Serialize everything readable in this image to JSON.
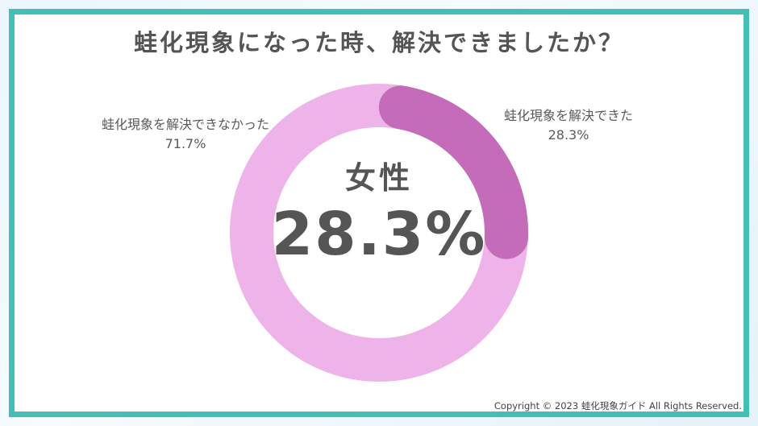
{
  "title": "蛙化現象になった時、解決できましたか？",
  "colors": {
    "frame": "#43bfb8",
    "resolved": "#c46bba",
    "not_resolved": "#eeb3e8",
    "text": "#555555"
  },
  "center": {
    "category": "女性",
    "value": "28.3%"
  },
  "labels": {
    "not_resolved": {
      "name": "蛙化現象を解決できなかった",
      "value": "71.7%"
    },
    "resolved": {
      "name": "蛙化現象を解決できた",
      "value": "28.3%"
    }
  },
  "copyright": "Copyright © 2023 蛙化現象ガイド All Rights Reserved.",
  "chart_data": {
    "type": "pie",
    "subtype": "donut",
    "title": "蛙化現象になった時、解決できましたか？",
    "subtitle": "女性",
    "categories": [
      "蛙化現象を解決できた",
      "蛙化現象を解決できなかった"
    ],
    "values": [
      28.3,
      71.7
    ],
    "unit": "%",
    "colors": [
      "#c46bba",
      "#eeb3e8"
    ],
    "center_text": [
      "女性",
      "28.3%"
    ],
    "legend": "none (direct labels)"
  }
}
